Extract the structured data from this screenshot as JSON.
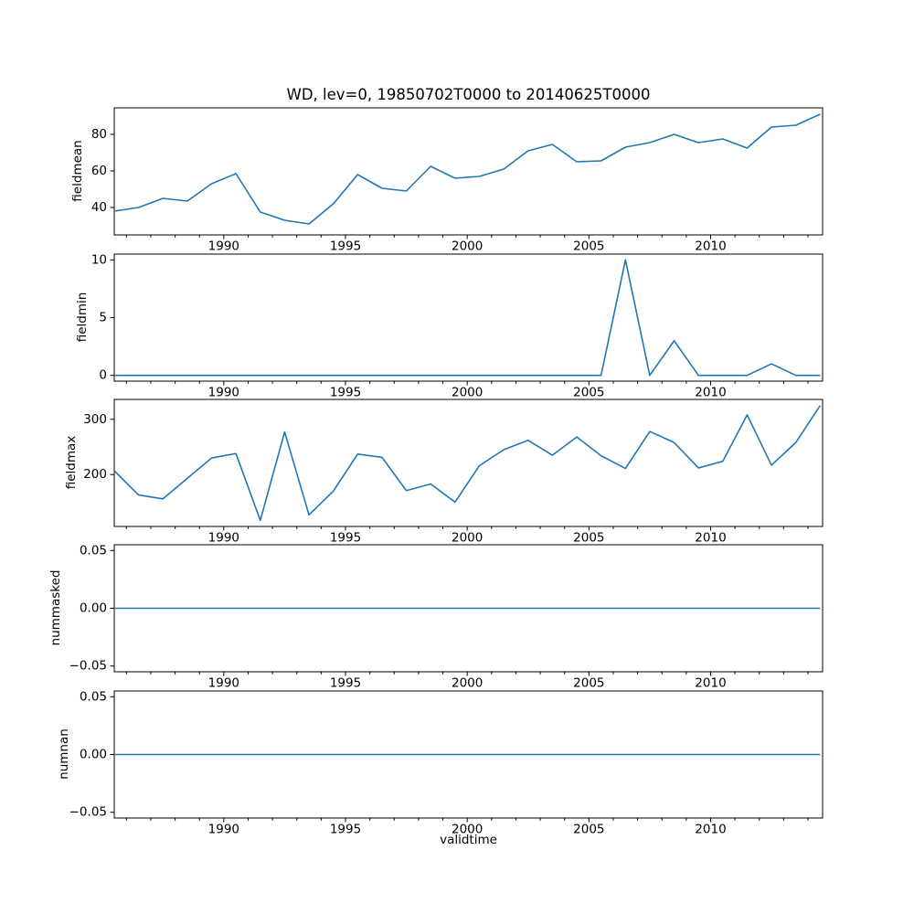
{
  "title": "WD, lev=0, 19850702T0000 to 20140625T0000",
  "xlabel": "validtime",
  "line_color": "#1f77b4",
  "x_axis": {
    "xlim": [
      1985.5,
      2014.6
    ],
    "major_ticks": [
      {
        "value": 1990,
        "label": "1990"
      },
      {
        "value": 1995,
        "label": "1995"
      },
      {
        "value": 2000,
        "label": "2000"
      },
      {
        "value": 2005,
        "label": "2005"
      },
      {
        "value": 2010,
        "label": "2010"
      }
    ],
    "minor_ticks": [
      1986,
      1987,
      1988,
      1989,
      1991,
      1992,
      1993,
      1994,
      1996,
      1997,
      1998,
      1999,
      2001,
      2002,
      2003,
      2004,
      2006,
      2007,
      2008,
      2009,
      2011,
      2012,
      2013,
      2014
    ]
  },
  "chart_data": [
    {
      "type": "line",
      "name": "fieldmean",
      "ylabel": "fieldmean",
      "ylim": [
        25,
        94.5
      ],
      "yticks": [
        {
          "value": 40,
          "label": "40"
        },
        {
          "value": 60,
          "label": "60"
        },
        {
          "value": 80,
          "label": "80"
        }
      ],
      "x": [
        1985.5,
        1986.5,
        1987.5,
        1988.5,
        1989.5,
        1990.5,
        1991.5,
        1992.5,
        1993.5,
        1994.5,
        1995.5,
        1996.5,
        1997.5,
        1998.5,
        1999.5,
        2000.5,
        2001.5,
        2002.5,
        2003.5,
        2004.5,
        2005.5,
        2006.5,
        2007.5,
        2008.5,
        2009.5,
        2010.5,
        2011.5,
        2012.5,
        2013.5,
        2014.5
      ],
      "values": [
        38,
        40,
        45,
        43.5,
        53,
        58.5,
        37.5,
        33,
        31,
        42,
        58,
        50.5,
        49,
        62.5,
        56,
        57,
        61,
        71,
        74.5,
        65,
        65.5,
        73,
        75.5,
        80,
        75.5,
        77.5,
        72.5,
        84,
        85,
        91
      ]
    },
    {
      "type": "line",
      "name": "fieldmin",
      "ylabel": "fieldmin",
      "ylim": [
        -0.5,
        10.5
      ],
      "yticks": [
        {
          "value": 0,
          "label": "0"
        },
        {
          "value": 5,
          "label": "5"
        },
        {
          "value": 10,
          "label": "10"
        }
      ],
      "x": [
        1985.5,
        1986.5,
        1987.5,
        1988.5,
        1989.5,
        1990.5,
        1991.5,
        1992.5,
        1993.5,
        1994.5,
        1995.5,
        1996.5,
        1997.5,
        1998.5,
        1999.5,
        2000.5,
        2001.5,
        2002.5,
        2003.5,
        2004.5,
        2005.5,
        2006.5,
        2007.5,
        2008.5,
        2009.5,
        2010.5,
        2011.5,
        2012.5,
        2013.5,
        2014.5
      ],
      "values": [
        0,
        0,
        0,
        0,
        0,
        0,
        0,
        0,
        0,
        0,
        0,
        0,
        0,
        0,
        0,
        0,
        0,
        0,
        0,
        0,
        0,
        10,
        0,
        3,
        0,
        0,
        0,
        1,
        0,
        0
      ]
    },
    {
      "type": "line",
      "name": "fieldmax",
      "ylabel": "fieldmax",
      "ylim": [
        106,
        336
      ],
      "yticks": [
        {
          "value": 200,
          "label": "200"
        },
        {
          "value": 300,
          "label": "300"
        }
      ],
      "x": [
        1985.5,
        1986.5,
        1987.5,
        1988.5,
        1989.5,
        1990.5,
        1991.5,
        1992.5,
        1993.5,
        1994.5,
        1995.5,
        1996.5,
        1997.5,
        1998.5,
        1999.5,
        2000.5,
        2001.5,
        2002.5,
        2003.5,
        2004.5,
        2005.5,
        2006.5,
        2007.5,
        2008.5,
        2009.5,
        2010.5,
        2011.5,
        2012.5,
        2013.5,
        2014.5
      ],
      "values": [
        207,
        163,
        156,
        193,
        230,
        238,
        117,
        277,
        127,
        170,
        237,
        231,
        171,
        183,
        150,
        216,
        245,
        262,
        235,
        268,
        234,
        211,
        278,
        258,
        212,
        224,
        308,
        217,
        258,
        325
      ]
    },
    {
      "type": "line",
      "name": "nummasked",
      "ylabel": "nummasked",
      "ylim": [
        -0.055,
        0.055
      ],
      "yticks": [
        {
          "value": -0.05,
          "label": "−0.05"
        },
        {
          "value": 0,
          "label": "0.00"
        },
        {
          "value": 0.05,
          "label": "0.05"
        }
      ],
      "x": [
        1985.5,
        1986.5,
        1987.5,
        1988.5,
        1989.5,
        1990.5,
        1991.5,
        1992.5,
        1993.5,
        1994.5,
        1995.5,
        1996.5,
        1997.5,
        1998.5,
        1999.5,
        2000.5,
        2001.5,
        2002.5,
        2003.5,
        2004.5,
        2005.5,
        2006.5,
        2007.5,
        2008.5,
        2009.5,
        2010.5,
        2011.5,
        2012.5,
        2013.5,
        2014.5
      ],
      "values": [
        0,
        0,
        0,
        0,
        0,
        0,
        0,
        0,
        0,
        0,
        0,
        0,
        0,
        0,
        0,
        0,
        0,
        0,
        0,
        0,
        0,
        0,
        0,
        0,
        0,
        0,
        0,
        0,
        0,
        0
      ]
    },
    {
      "type": "line",
      "name": "numnan",
      "ylabel": "numnan",
      "ylim": [
        -0.055,
        0.055
      ],
      "yticks": [
        {
          "value": -0.05,
          "label": "−0.05"
        },
        {
          "value": 0,
          "label": "0.00"
        },
        {
          "value": 0.05,
          "label": "0.05"
        }
      ],
      "x": [
        1985.5,
        1986.5,
        1987.5,
        1988.5,
        1989.5,
        1990.5,
        1991.5,
        1992.5,
        1993.5,
        1994.5,
        1995.5,
        1996.5,
        1997.5,
        1998.5,
        1999.5,
        2000.5,
        2001.5,
        2002.5,
        2003.5,
        2004.5,
        2005.5,
        2006.5,
        2007.5,
        2008.5,
        2009.5,
        2010.5,
        2011.5,
        2012.5,
        2013.5,
        2014.5
      ],
      "values": [
        0,
        0,
        0,
        0,
        0,
        0,
        0,
        0,
        0,
        0,
        0,
        0,
        0,
        0,
        0,
        0,
        0,
        0,
        0,
        0,
        0,
        0,
        0,
        0,
        0,
        0,
        0,
        0,
        0,
        0
      ]
    }
  ]
}
